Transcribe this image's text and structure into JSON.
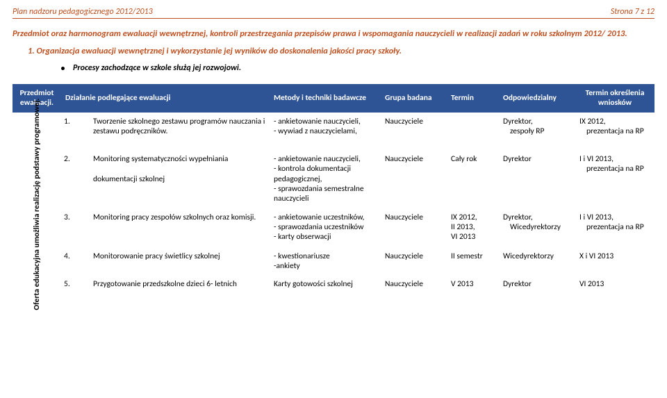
{
  "header": {
    "left": "Plan nadzoru pedagogicznego 2012/2013",
    "right": "Strona 7 z 12"
  },
  "intro": "Przedmiot oraz harmonogram ewaluacji wewnętrznej, kontroli przestrzegania przepisów prawa i wspomagania nauczycieli w realizacji zadań w roku szkolnym  2012/ 2013.",
  "section_title": "1.    Organizacja ewaluacji wewnętrznej i wykorzystanie jej wyników do doskonalenia jakości pracy szkoły.",
  "bullet": "Procesy zachodzące w szkole służą jej rozwojowi.",
  "columns": {
    "c1a": "Przedmiot",
    "c1b": "ewaluacji.",
    "c2": "Działanie podlegające ewaluacji",
    "c3": "Metody i techniki badawcze",
    "c4": "Grupa badana",
    "c5": "Termin",
    "c6": "Odpowiedzialny",
    "c7a": "Termin określenia",
    "c7b": "wniosków"
  },
  "side_label": "Oferta edukacyjna umożliwia realizację podstawy programowej.",
  "rows": [
    {
      "n": "1.",
      "dz": "Tworzenie szkolnego zestawu programów nauczania  i  zestawu podręczników.",
      "met": "- ankietowanie nauczycieli,\n- wywiad z nauczycielami,",
      "grp": "Nauczyciele",
      "term": "",
      "odp": "Dyrektor,",
      "odp2": "zespoły RP",
      "due": "IX 2012,",
      "due2": "prezentacja na RP"
    },
    {
      "n": "2.",
      "dz": "Monitoring systematyczności wypełniania\n\ndokumentacji szkolnej",
      "met": "- ankietowanie nauczycieli,\n- kontrola dokumentacji pedagogicznej,\n- sprawozdania semestralne nauczycieli",
      "grp": "Nauczyciele",
      "term": "Cały rok",
      "odp": "Dyrektor",
      "odp2": "",
      "due": "I i VI 2013,",
      "due2": "prezentacja na RP"
    },
    {
      "n": "3.",
      "dz": "Monitoring pracy zespołów szkolnych oraz komisji.",
      "met": "- ankietowanie uczestników,\n- sprawozdania uczestników\n- karty obserwacji",
      "grp": "Nauczyciele",
      "term": "IX 2012,\nII 2013,\nVI 2013",
      "odp": "Dyrektor,",
      "odp2": "Wicedyrektorzy",
      "due": "I i VI 2013,",
      "due2": "prezentacja na RP"
    },
    {
      "n": "4.",
      "dz": "Monitorowanie pracy świetlicy szkolnej",
      "met": "- kwestionariusze\n-ankiety",
      "grp": "Nauczyciele",
      "term": "II semestr",
      "odp": "Wicedyrektorzy",
      "odp2": "",
      "due": "X i VI 2013",
      "due2": ""
    },
    {
      "n": "5.",
      "dz": "Przygotowanie przedszkolne dzieci 6- letnich",
      "met": "Karty gotowości szkolnej",
      "grp": "Nauczyciele",
      "term": "V 2013",
      "odp": "Dyrektor",
      "odp2": "",
      "due": "VI 2013",
      "due2": ""
    }
  ]
}
